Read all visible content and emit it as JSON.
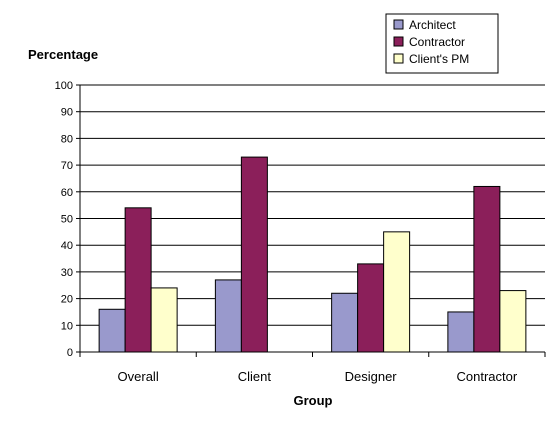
{
  "chart_data": {
    "type": "bar",
    "ylabel": "Percentage",
    "xlabel": "Group",
    "categories": [
      "Overall",
      "Client",
      "Designer",
      "Contractor"
    ],
    "ylim": [
      0,
      100
    ],
    "yticks": [
      0,
      10,
      20,
      30,
      40,
      50,
      60,
      70,
      80,
      90,
      100
    ],
    "grid": true,
    "legend_position": "top-right",
    "series": [
      {
        "name": "Architect",
        "color": "#9999cc",
        "values": [
          16,
          27,
          22,
          15
        ]
      },
      {
        "name": "Contractor",
        "color": "#8b1f5a",
        "values": [
          54,
          73,
          33,
          62
        ]
      },
      {
        "name": "Client's PM",
        "color": "#ffffcc",
        "values": [
          24,
          null,
          45,
          23
        ]
      }
    ]
  }
}
